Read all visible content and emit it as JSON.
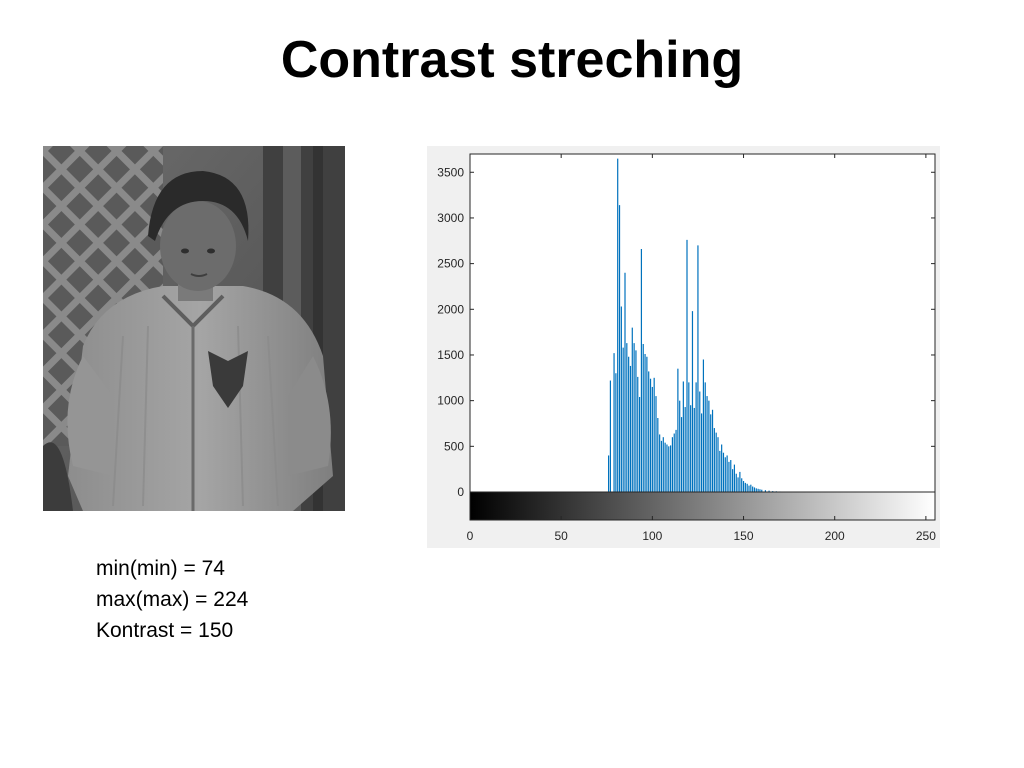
{
  "slide": {
    "title": "Contrast streching"
  },
  "photo": {
    "description_icon": "boy-grayscale-photo"
  },
  "stats": {
    "line1": "min(min) = 74",
    "line2": "max(max) = 224",
    "line3": "Kontrast = 150"
  },
  "chart_data": {
    "type": "bar",
    "title": "",
    "xlabel": "",
    "ylabel": "",
    "xlim": [
      0,
      255
    ],
    "ylim": [
      0,
      3700
    ],
    "xticks": [
      0,
      50,
      100,
      150,
      200,
      250
    ],
    "yticks": [
      0,
      500,
      1000,
      1500,
      2000,
      2500,
      3000,
      3500
    ],
    "bar_color": "#0072bd",
    "colorbar": "grayscale 0-255",
    "grid": false,
    "x": [
      76,
      77,
      79,
      80,
      81,
      82,
      83,
      84,
      85,
      86,
      87,
      88,
      89,
      90,
      91,
      92,
      93,
      94,
      95,
      96,
      97,
      98,
      99,
      100,
      101,
      102,
      103,
      104,
      105,
      106,
      107,
      108,
      109,
      110,
      111,
      112,
      113,
      114,
      115,
      116,
      117,
      118,
      119,
      120,
      121,
      122,
      123,
      124,
      125,
      126,
      127,
      128,
      129,
      130,
      131,
      132,
      133,
      134,
      135,
      136,
      137,
      138,
      139,
      140,
      141,
      142,
      143,
      144,
      145,
      146,
      147,
      148,
      149,
      150,
      151,
      152,
      153,
      154,
      155,
      156,
      157,
      158,
      159,
      160,
      162,
      164,
      166,
      168,
      170,
      173,
      176,
      180,
      184,
      188,
      192
    ],
    "values": [
      400,
      1220,
      1520,
      1300,
      3650,
      3140,
      2030,
      1580,
      2400,
      1630,
      1480,
      1380,
      1800,
      1630,
      1550,
      1260,
      1040,
      2660,
      1620,
      1510,
      1480,
      1320,
      1240,
      1150,
      1250,
      1050,
      810,
      630,
      560,
      600,
      540,
      520,
      500,
      510,
      600,
      640,
      680,
      1350,
      1000,
      820,
      1210,
      930,
      2760,
      1200,
      950,
      1980,
      920,
      1200,
      2700,
      1100,
      860,
      1450,
      1200,
      1050,
      1000,
      850,
      900,
      700,
      650,
      600,
      450,
      520,
      430,
      380,
      400,
      330,
      350,
      250,
      300,
      200,
      160,
      220,
      150,
      120,
      100,
      90,
      70,
      80,
      60,
      50,
      40,
      35,
      30,
      25,
      20,
      15,
      10,
      8,
      6,
      5,
      4,
      3,
      2,
      2,
      1
    ]
  }
}
